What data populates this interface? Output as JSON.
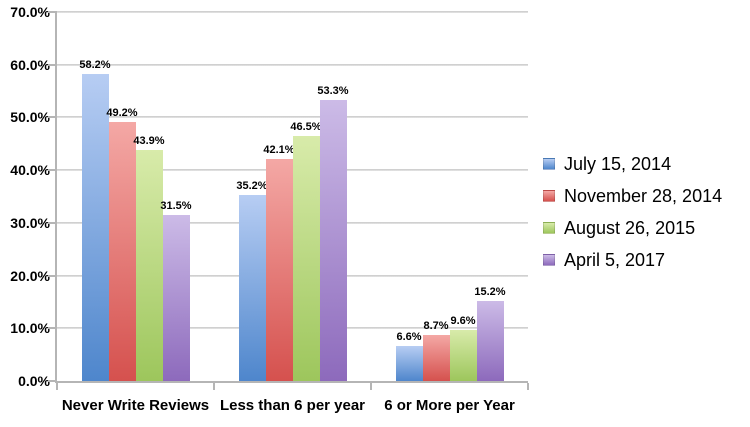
{
  "chart_data": {
    "type": "bar",
    "title": "",
    "xlabel": "",
    "ylabel": "",
    "categories": [
      "Never Write Reviews",
      "Less than 6 per year",
      "6 or More per Year"
    ],
    "series": [
      {
        "name": "July 15, 2014",
        "values": [
          58.2,
          35.2,
          6.6
        ],
        "labels": [
          "58.2%",
          "35.2%",
          "6.6%"
        ],
        "color_top": "#b7cdf3",
        "color_bottom": "#4e86cc"
      },
      {
        "name": "November 28, 2014",
        "values": [
          49.2,
          42.1,
          8.7
        ],
        "labels": [
          "49.2%",
          "42.1%",
          "8.7%"
        ],
        "color_top": "#f4a8a5",
        "color_bottom": "#d5514e"
      },
      {
        "name": "August 26, 2015",
        "values": [
          43.9,
          46.5,
          9.6
        ],
        "labels": [
          "43.9%",
          "46.5%",
          "9.6%"
        ],
        "color_top": "#d8ebaa",
        "color_bottom": "#9dc65c"
      },
      {
        "name": "April 5, 2017",
        "values": [
          31.5,
          53.3,
          15.2
        ],
        "labels": [
          "31.5%",
          "53.3%",
          "15.2%"
        ],
        "color_top": "#ccbbe7",
        "color_bottom": "#8d6abc"
      }
    ],
    "y_axis": {
      "min": 0,
      "max": 70,
      "step": 10,
      "ticks": [
        "0.0%",
        "10.0%",
        "20.0%",
        "30.0%",
        "40.0%",
        "50.0%",
        "60.0%",
        "70.0%"
      ]
    },
    "grid": true,
    "legend_position": "right",
    "colors": {
      "gridline": "#c9c9c9",
      "axis": "#b5b5b5",
      "text": "#000000",
      "background": "#ffffff"
    }
  }
}
